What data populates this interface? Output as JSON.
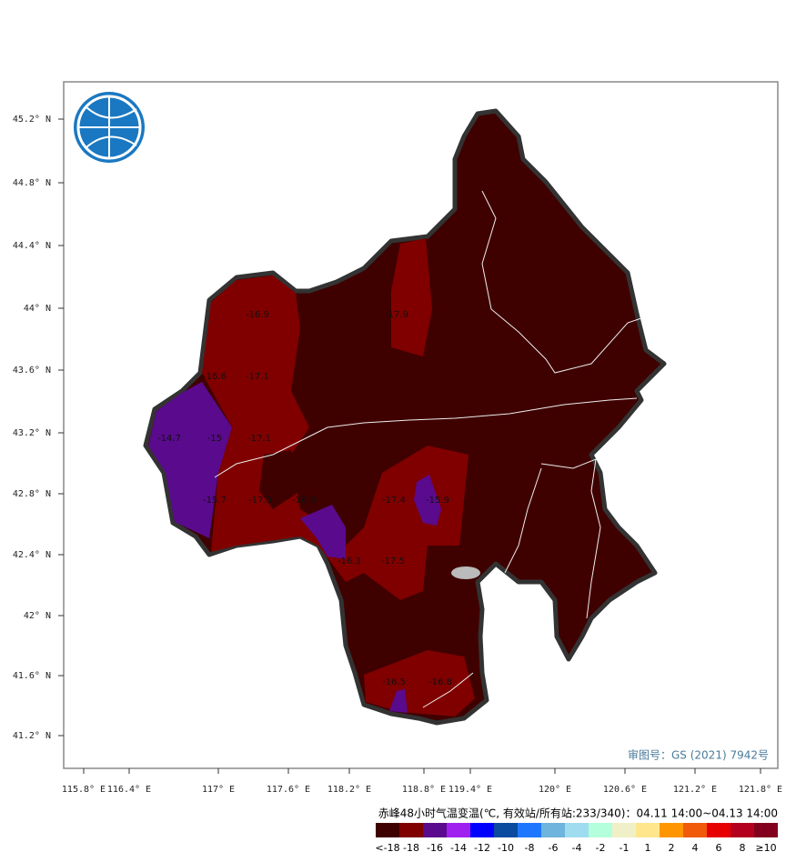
{
  "map": {
    "lat_labels": [
      "45.2° N",
      "44.8° N",
      "44.4° N",
      "44° N",
      "43.6° N",
      "43.2° N",
      "42.8° N",
      "42.4° N",
      "42° N",
      "41.6° N",
      "41.2° N"
    ],
    "lon_labels": [
      "115.8° E",
      "116.4° E",
      "117° E",
      "117.6° E",
      "118.2° E",
      "118.8° E",
      "119.4° E",
      "120° E",
      "120.6° E",
      "121.2° E",
      "121.8° E"
    ],
    "station_values": [
      -16.9,
      -16.6,
      -17.1,
      -14.7,
      -15,
      -17.1,
      -15.7,
      -17.3,
      -16.9,
      -17.4,
      -15.9,
      -16.3,
      -17.5,
      -17.9,
      -16.5,
      -16.8
    ],
    "approval": "审图号：GS (2021) 7942号",
    "title": "赤峰48小时气温变温(℃, 有效站/所有站:233/340)：04.11  14:00~04.13  14:00",
    "legend": {
      "labels": [
        "<-18",
        "-18",
        "-16",
        "-14",
        "-12",
        "-10",
        "-8",
        "-6",
        "-4",
        "-2",
        "-1",
        "1",
        "2",
        "4",
        "6",
        "8",
        "≥10"
      ],
      "colors": [
        "#3f0000",
        "#800000",
        "#5a0a8c",
        "#a020f0",
        "#0000ff",
        "#0a4ba0",
        "#1e78ff",
        "#6eb4dc",
        "#a0dcf0",
        "#b4ffdc",
        "#f0f0c8",
        "#ffe68c",
        "#ff9600",
        "#f05a0a",
        "#e60000",
        "#b4001e",
        "#82001e"
      ]
    }
  }
}
